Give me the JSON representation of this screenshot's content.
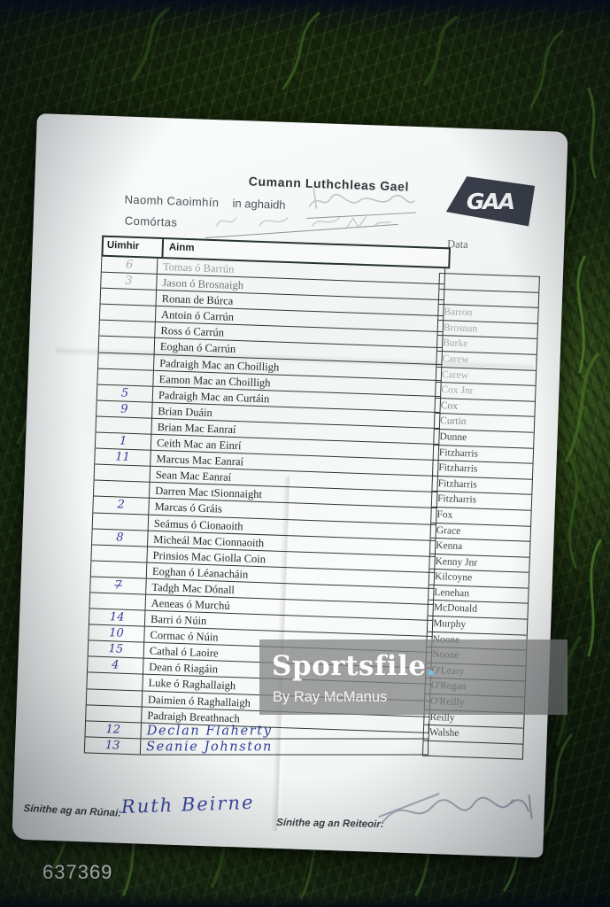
{
  "photo_id": "637369",
  "watermark": {
    "brand": "Sportsfile",
    "dot": ".",
    "byline": "By Ray McManus"
  },
  "document": {
    "title": "Cumann Luthchleas Gael",
    "team": "Naomh Caoimhín",
    "versus_label": "in aghaidh",
    "competition_label": "Comórtas",
    "logo_text": "GAA",
    "columns": {
      "number": "Uimhir",
      "name": "Ainm",
      "data": "Data"
    },
    "rows": [
      {
        "number": "6",
        "number_style": "pencil",
        "name": "Tomas ó Barrún",
        "name_style": "faded1",
        "data": "",
        "data_style": ""
      },
      {
        "number": "3",
        "number_style": "pencil",
        "name": "Jason ó Brosnaigh",
        "name_style": "faded2",
        "data": "",
        "data_style": ""
      },
      {
        "number": "",
        "number_style": "",
        "name": "Ronan de Búrca",
        "name_style": "",
        "data": "Barron",
        "data_style": "faded"
      },
      {
        "number": "",
        "number_style": "",
        "name": "Antoin ó Carrún",
        "name_style": "",
        "data": "Brosnan",
        "data_style": "faded"
      },
      {
        "number": "",
        "number_style": "",
        "name": "Ross ó Carrún",
        "name_style": "",
        "data": "Burke",
        "data_style": "faded"
      },
      {
        "number": "",
        "number_style": "",
        "name": "Eoghan ó Carrún",
        "name_style": "",
        "data": "Carew",
        "data_style": "faded"
      },
      {
        "number": "",
        "number_style": "",
        "name": "Padraigh Mac an Choilligh",
        "name_style": "",
        "data": "Carew",
        "data_style": "faded"
      },
      {
        "number": "",
        "number_style": "",
        "name": "Eamon Mac an Choilligh",
        "name_style": "",
        "data": "Cox Jnr",
        "data_style": "faded"
      },
      {
        "number": "5",
        "number_style": "pen",
        "name": "Padraigh Mac an Curtáin",
        "name_style": "",
        "data": "Cox",
        "data_style": "mid"
      },
      {
        "number": "9",
        "number_style": "pen",
        "name": "Brian Duáin",
        "name_style": "",
        "data": "Curtin",
        "data_style": "mid"
      },
      {
        "number": "",
        "number_style": "",
        "name": "Brian Mac Eanraí",
        "name_style": "",
        "data": "Dunne",
        "data_style": ""
      },
      {
        "number": "1",
        "number_style": "pen",
        "name": "Ceith Mac an Einrí",
        "name_style": "",
        "data": "Fitzharris",
        "data_style": ""
      },
      {
        "number": "11",
        "number_style": "pen",
        "name": "Marcus Mac Eanraí",
        "name_style": "",
        "data": "Fitzharris",
        "data_style": ""
      },
      {
        "number": "",
        "number_style": "",
        "name": "Sean Mac Eanraí",
        "name_style": "",
        "data": "Fitzharris",
        "data_style": ""
      },
      {
        "number": "",
        "number_style": "",
        "name": "Darren Mac tSionnaight",
        "name_style": "",
        "data": "Fitzharris",
        "data_style": ""
      },
      {
        "number": "2",
        "number_style": "pen",
        "name": "Marcas ó Gráis",
        "name_style": "",
        "data": "Fox",
        "data_style": ""
      },
      {
        "number": "",
        "number_style": "",
        "name": "Seámus ó Cionaoith",
        "name_style": "",
        "data": "Grace",
        "data_style": ""
      },
      {
        "number": "8",
        "number_style": "pen",
        "name": "Micheál Mac Cionnaoith",
        "name_style": "",
        "data": "Kenna",
        "data_style": ""
      },
      {
        "number": "",
        "number_style": "",
        "name": "Prinsios Mac Giolla Coin",
        "name_style": "",
        "data": "Kenny Jnr",
        "data_style": ""
      },
      {
        "number": "",
        "number_style": "",
        "name": "Eoghan ó Léanacháin",
        "name_style": "",
        "data": "Kilcoyne",
        "data_style": ""
      },
      {
        "number": "7",
        "number_style": "pen struck",
        "name": "Tadgh Mac Dónall",
        "name_style": "",
        "data": "Lenehan",
        "data_style": ""
      },
      {
        "number": "",
        "number_style": "",
        "name": "Aeneas ó Murchú",
        "name_style": "",
        "data": "McDonald",
        "data_style": ""
      },
      {
        "number": "14",
        "number_style": "pen",
        "name": "Barri ó Núin",
        "name_style": "",
        "data": "Murphy",
        "data_style": ""
      },
      {
        "number": "10",
        "number_style": "pen",
        "name": "Cormac ó Núin",
        "name_style": "",
        "data": "Noone",
        "data_style": ""
      },
      {
        "number": "15",
        "number_style": "pen",
        "name": "Cathal ó Laoire",
        "name_style": "",
        "data": "Noone",
        "data_style": ""
      },
      {
        "number": "4",
        "number_style": "pen",
        "name": "Dean ó Riagáin",
        "name_style": "",
        "data": "O'Leary",
        "data_style": ""
      },
      {
        "number": "",
        "number_style": "",
        "name": "Luke ó Raghallaigh",
        "name_style": "",
        "data": "O'Regan",
        "data_style": ""
      },
      {
        "number": "",
        "number_style": "",
        "name": "Daimien ó Raghallaigh",
        "name_style": "",
        "data": "O'Reilly",
        "data_style": ""
      },
      {
        "number": "",
        "number_style": "",
        "name": "Padraigh Breathnach",
        "name_style": "",
        "data": "Reilly",
        "data_style": ""
      },
      {
        "number": "12",
        "number_style": "pen",
        "name": "Declan Flaherty",
        "name_style": "hand",
        "data": "Walshe",
        "data_style": ""
      },
      {
        "number": "13",
        "number_style": "pen",
        "name": "Seanie Johnston",
        "name_style": "hand",
        "data": "",
        "data_style": ""
      }
    ],
    "footer": {
      "secretary_label": "Sínithe ag an Rúnai:",
      "secretary_signature": "Ruth Beirne",
      "referee_label": "Sínithe ag an Reiteoir:"
    }
  },
  "colors": {
    "watermark_dot": "#74c3e8",
    "pen_ink": "#353f9c",
    "logo_background": "#383d49",
    "grass_dark": "#16240d"
  }
}
